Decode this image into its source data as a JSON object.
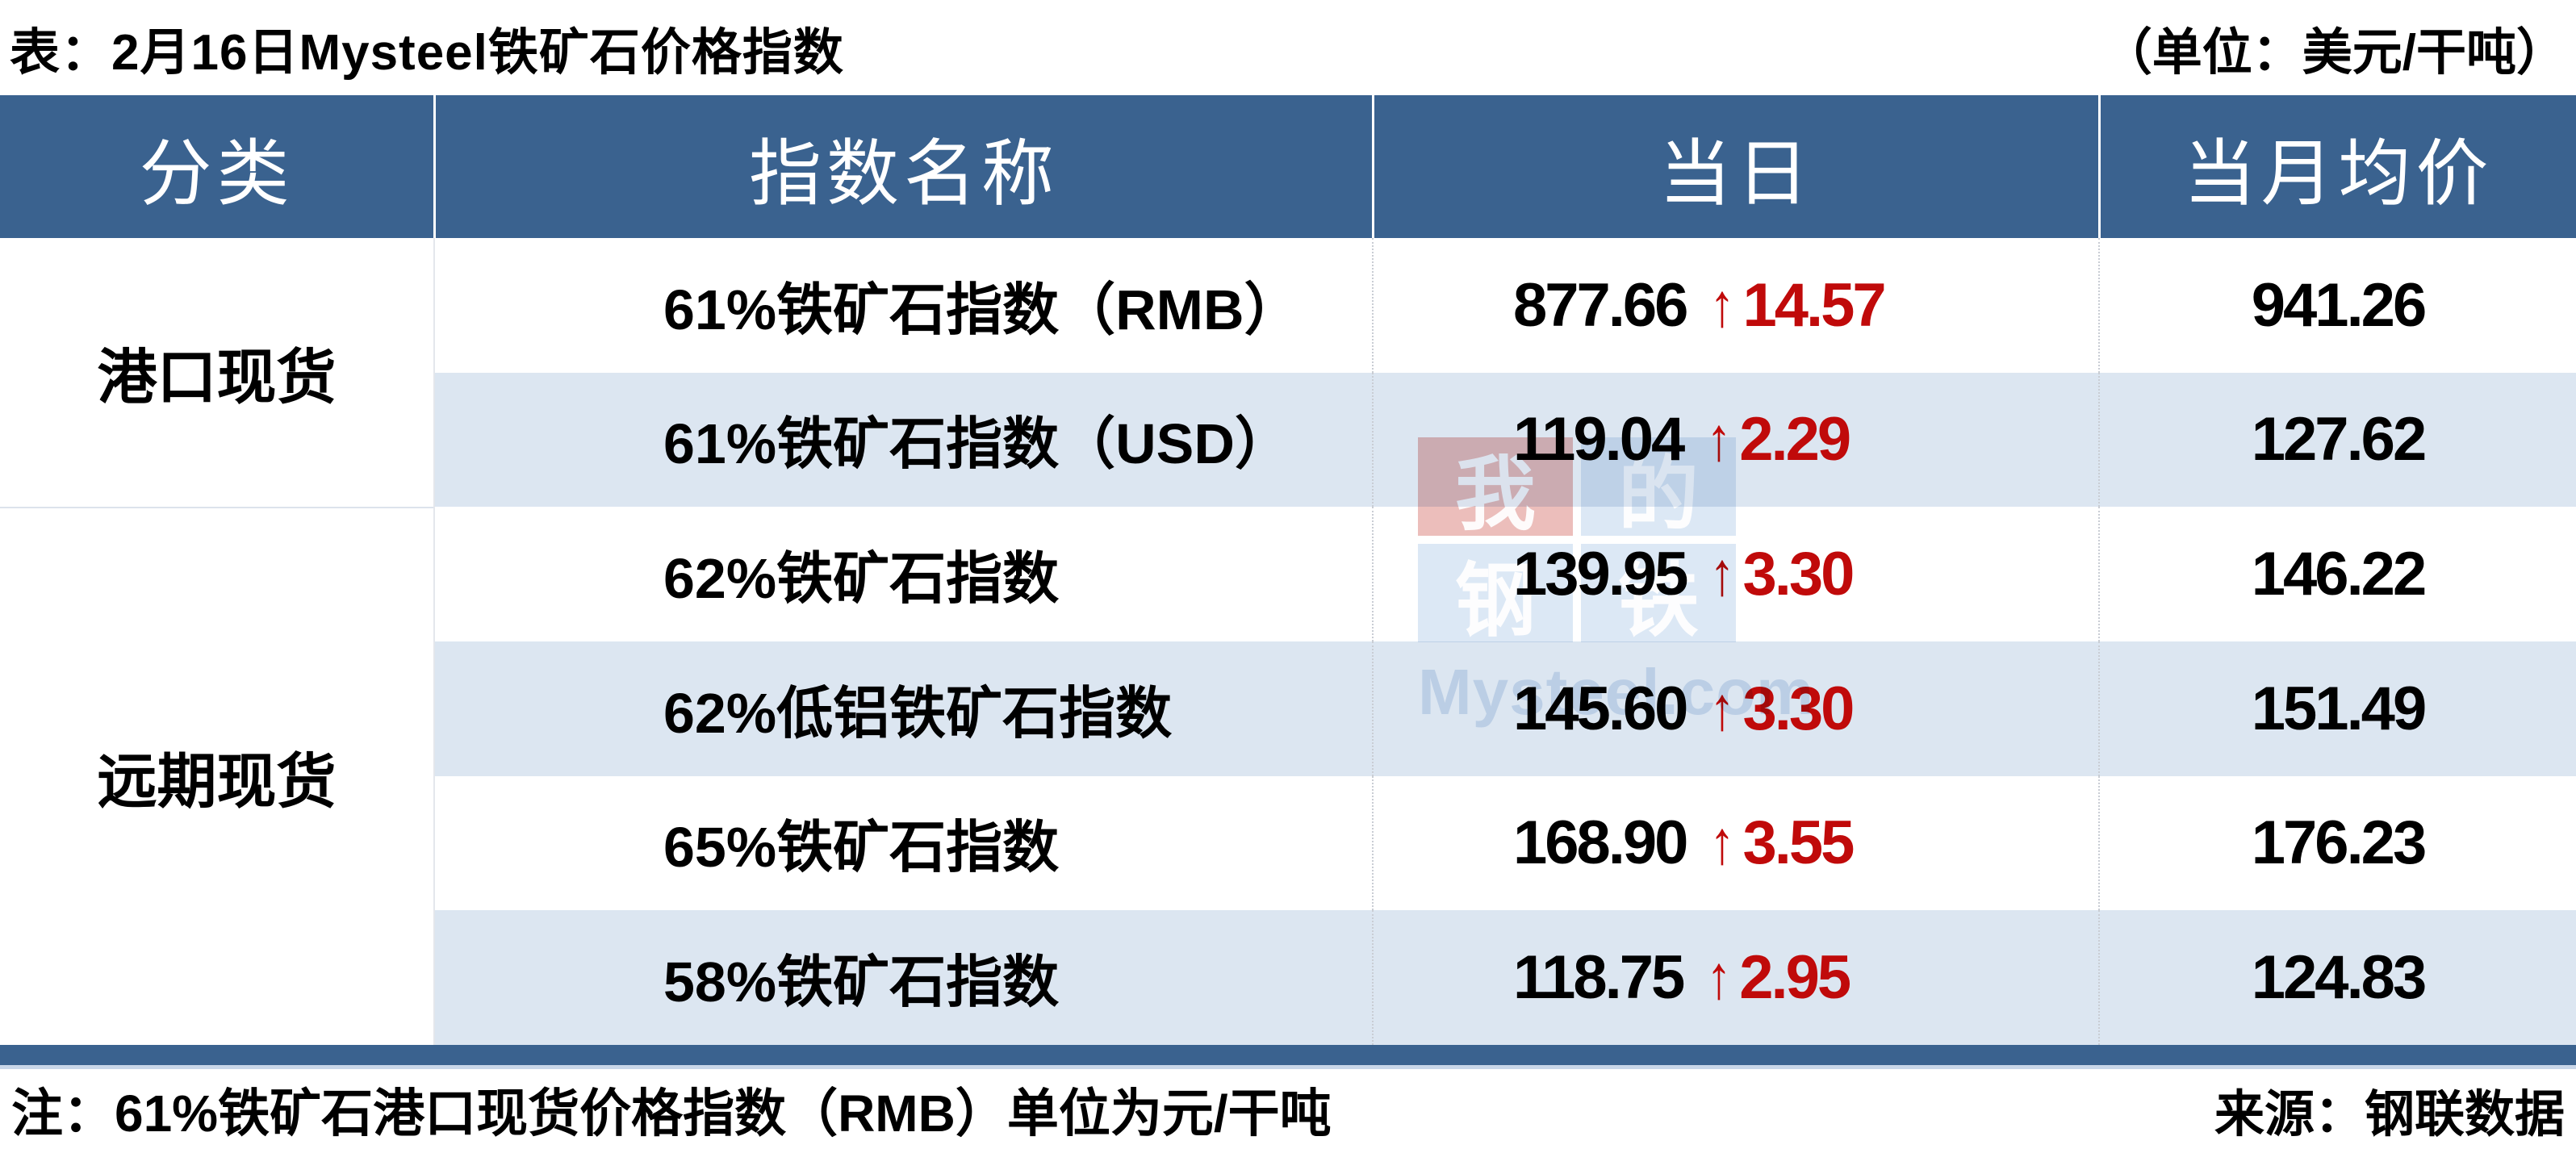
{
  "chart_data": {
    "type": "table",
    "title": "表：2月16日Mysteel铁矿石价格指数",
    "unit_label": "（单位：美元/干吨）",
    "columns": [
      "分类",
      "指数名称",
      "当日",
      "当月均价"
    ],
    "groups": [
      {
        "category": "港口现货",
        "rows": [
          {
            "name": "61%铁矿石指数（RMB）",
            "daily": "877.66",
            "direction": "up",
            "change": "14.57",
            "month_avg": "941.26"
          },
          {
            "name": "61%铁矿石指数（USD）",
            "daily": "119.04",
            "direction": "up",
            "change": "2.29",
            "month_avg": "127.62"
          }
        ]
      },
      {
        "category": "远期现货",
        "rows": [
          {
            "name": "62%铁矿石指数",
            "daily": "139.95",
            "direction": "up",
            "change": "3.30",
            "month_avg": "146.22"
          },
          {
            "name": "62%低铝铁矿石指数",
            "daily": "145.60",
            "direction": "up",
            "change": "3.30",
            "month_avg": "151.49"
          },
          {
            "name": "65%铁矿石指数",
            "daily": "168.90",
            "direction": "up",
            "change": "3.55",
            "month_avg": "176.23"
          },
          {
            "name": "58%铁矿石指数",
            "daily": "118.75",
            "direction": "up",
            "change": "2.95",
            "month_avg": "124.83"
          }
        ]
      }
    ],
    "note": "注：61%铁矿石港口现货价格指数（RMB）单位为元/干吨",
    "source": "来源：钢联数据"
  },
  "icons": {
    "up_arrow": "↑"
  },
  "watermark": {
    "tiles": [
      "我",
      "的",
      "钢",
      "铁"
    ],
    "text": "Mysteel.com"
  },
  "colors": {
    "header_bg": "#3A628F",
    "stripe_bg": "#DCE6F1",
    "up_red": "#C00A0A",
    "footer_bar": "#3A628F"
  }
}
